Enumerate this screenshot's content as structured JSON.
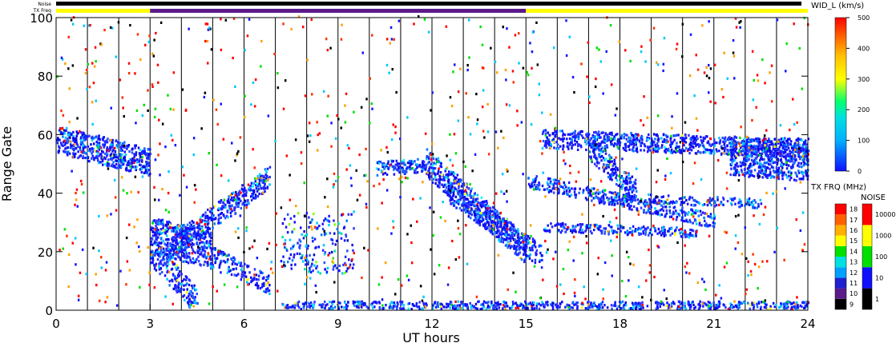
{
  "chart_data": {
    "type": "heatmap",
    "title": "",
    "xlabel": "UT hours",
    "ylabel": "Range Gate",
    "xlim": [
      0,
      24
    ],
    "ylim": [
      0,
      100
    ],
    "x_ticks": [
      "0",
      "3",
      "6",
      "9",
      "12",
      "15",
      "18",
      "21",
      "24"
    ],
    "y_ticks": [
      "0",
      "20",
      "40",
      "60",
      "80",
      "100"
    ],
    "grid": "vertical lines every hour",
    "top_bars": {
      "noise_label": "Noise",
      "txfreq_label": "TX Freq",
      "noise_color": "#000000",
      "txfreq_segments": [
        {
          "start": 0,
          "end": 3,
          "color": "#ffff00"
        },
        {
          "start": 3,
          "end": 15,
          "color": "#5a1a8a"
        },
        {
          "start": 15,
          "end": 24,
          "color": "#ffff00"
        }
      ]
    },
    "width_colorbar": {
      "title": "WID_L (km/s)",
      "range": [
        0,
        500
      ],
      "ticks": [
        "0",
        "100",
        "200",
        "300",
        "400",
        "500"
      ]
    },
    "txfreq_colorbar": {
      "title": "TX FRQ (MHz)",
      "ticks": [
        "9",
        "10",
        "11",
        "12",
        "13",
        "14",
        "15",
        "16",
        "17",
        "18"
      ]
    },
    "noise_colorbar": {
      "title": "NOISE",
      "ticks": [
        "1",
        "10",
        "100",
        "1000",
        "10000"
      ]
    },
    "scatter_features": [
      {
        "desc": "band",
        "t0": 0.0,
        "t1": 3.0,
        "g0": 58,
        "g1": 50,
        "thick": 6,
        "density": 0.9
      },
      {
        "desc": "band",
        "t0": 3.0,
        "t1": 5.0,
        "g0": 25,
        "g1": 20,
        "thick": 8,
        "density": 0.8
      },
      {
        "desc": "band",
        "t0": 3.5,
        "t1": 6.8,
        "g0": 20,
        "g1": 45,
        "thick": 5,
        "density": 0.8
      },
      {
        "desc": "band",
        "t0": 3.0,
        "t1": 4.5,
        "g0": 20,
        "g1": 2,
        "thick": 6,
        "density": 0.7
      },
      {
        "desc": "band",
        "t0": 5.0,
        "t1": 6.8,
        "g0": 18,
        "g1": 8,
        "thick": 4,
        "density": 0.6
      },
      {
        "desc": "patch",
        "t0": 7.2,
        "t1": 9.5,
        "g0": 12,
        "g1": 33,
        "thick": 0,
        "density": 0.6
      },
      {
        "desc": "band",
        "t0": 10.2,
        "t1": 11.8,
        "g0": 48,
        "g1": 49,
        "thick": 3,
        "density": 0.9
      },
      {
        "desc": "band",
        "t0": 11.8,
        "t1": 15.0,
        "g0": 50,
        "g1": 20,
        "thick": 6,
        "density": 0.8
      },
      {
        "desc": "band",
        "t0": 12.5,
        "t1": 15.5,
        "g0": 40,
        "g1": 18,
        "thick": 5,
        "density": 0.7
      },
      {
        "desc": "band",
        "t0": 15.5,
        "t1": 24.0,
        "g0": 58,
        "g1": 55,
        "thick": 4,
        "density": 0.8
      },
      {
        "desc": "band",
        "t0": 17.0,
        "t1": 18.5,
        "g0": 55,
        "g1": 40,
        "thick": 5,
        "density": 0.8
      },
      {
        "desc": "band",
        "t0": 15.0,
        "t1": 21.0,
        "g0": 44,
        "g1": 30,
        "thick": 3,
        "density": 0.7
      },
      {
        "desc": "band",
        "t0": 15.5,
        "t1": 20.5,
        "g0": 28,
        "g1": 26,
        "thick": 2,
        "density": 0.7
      },
      {
        "desc": "band",
        "t0": 18.0,
        "t1": 22.5,
        "g0": 38,
        "g1": 36,
        "thick": 2,
        "density": 0.6
      },
      {
        "desc": "band",
        "t0": 21.5,
        "t1": 24.0,
        "g0": 52,
        "g1": 50,
        "thick": 8,
        "density": 0.9
      },
      {
        "desc": "band",
        "t0": 7.2,
        "t1": 24.0,
        "g0": 1,
        "g1": 1,
        "thick": 2,
        "density": 0.85
      }
    ]
  }
}
